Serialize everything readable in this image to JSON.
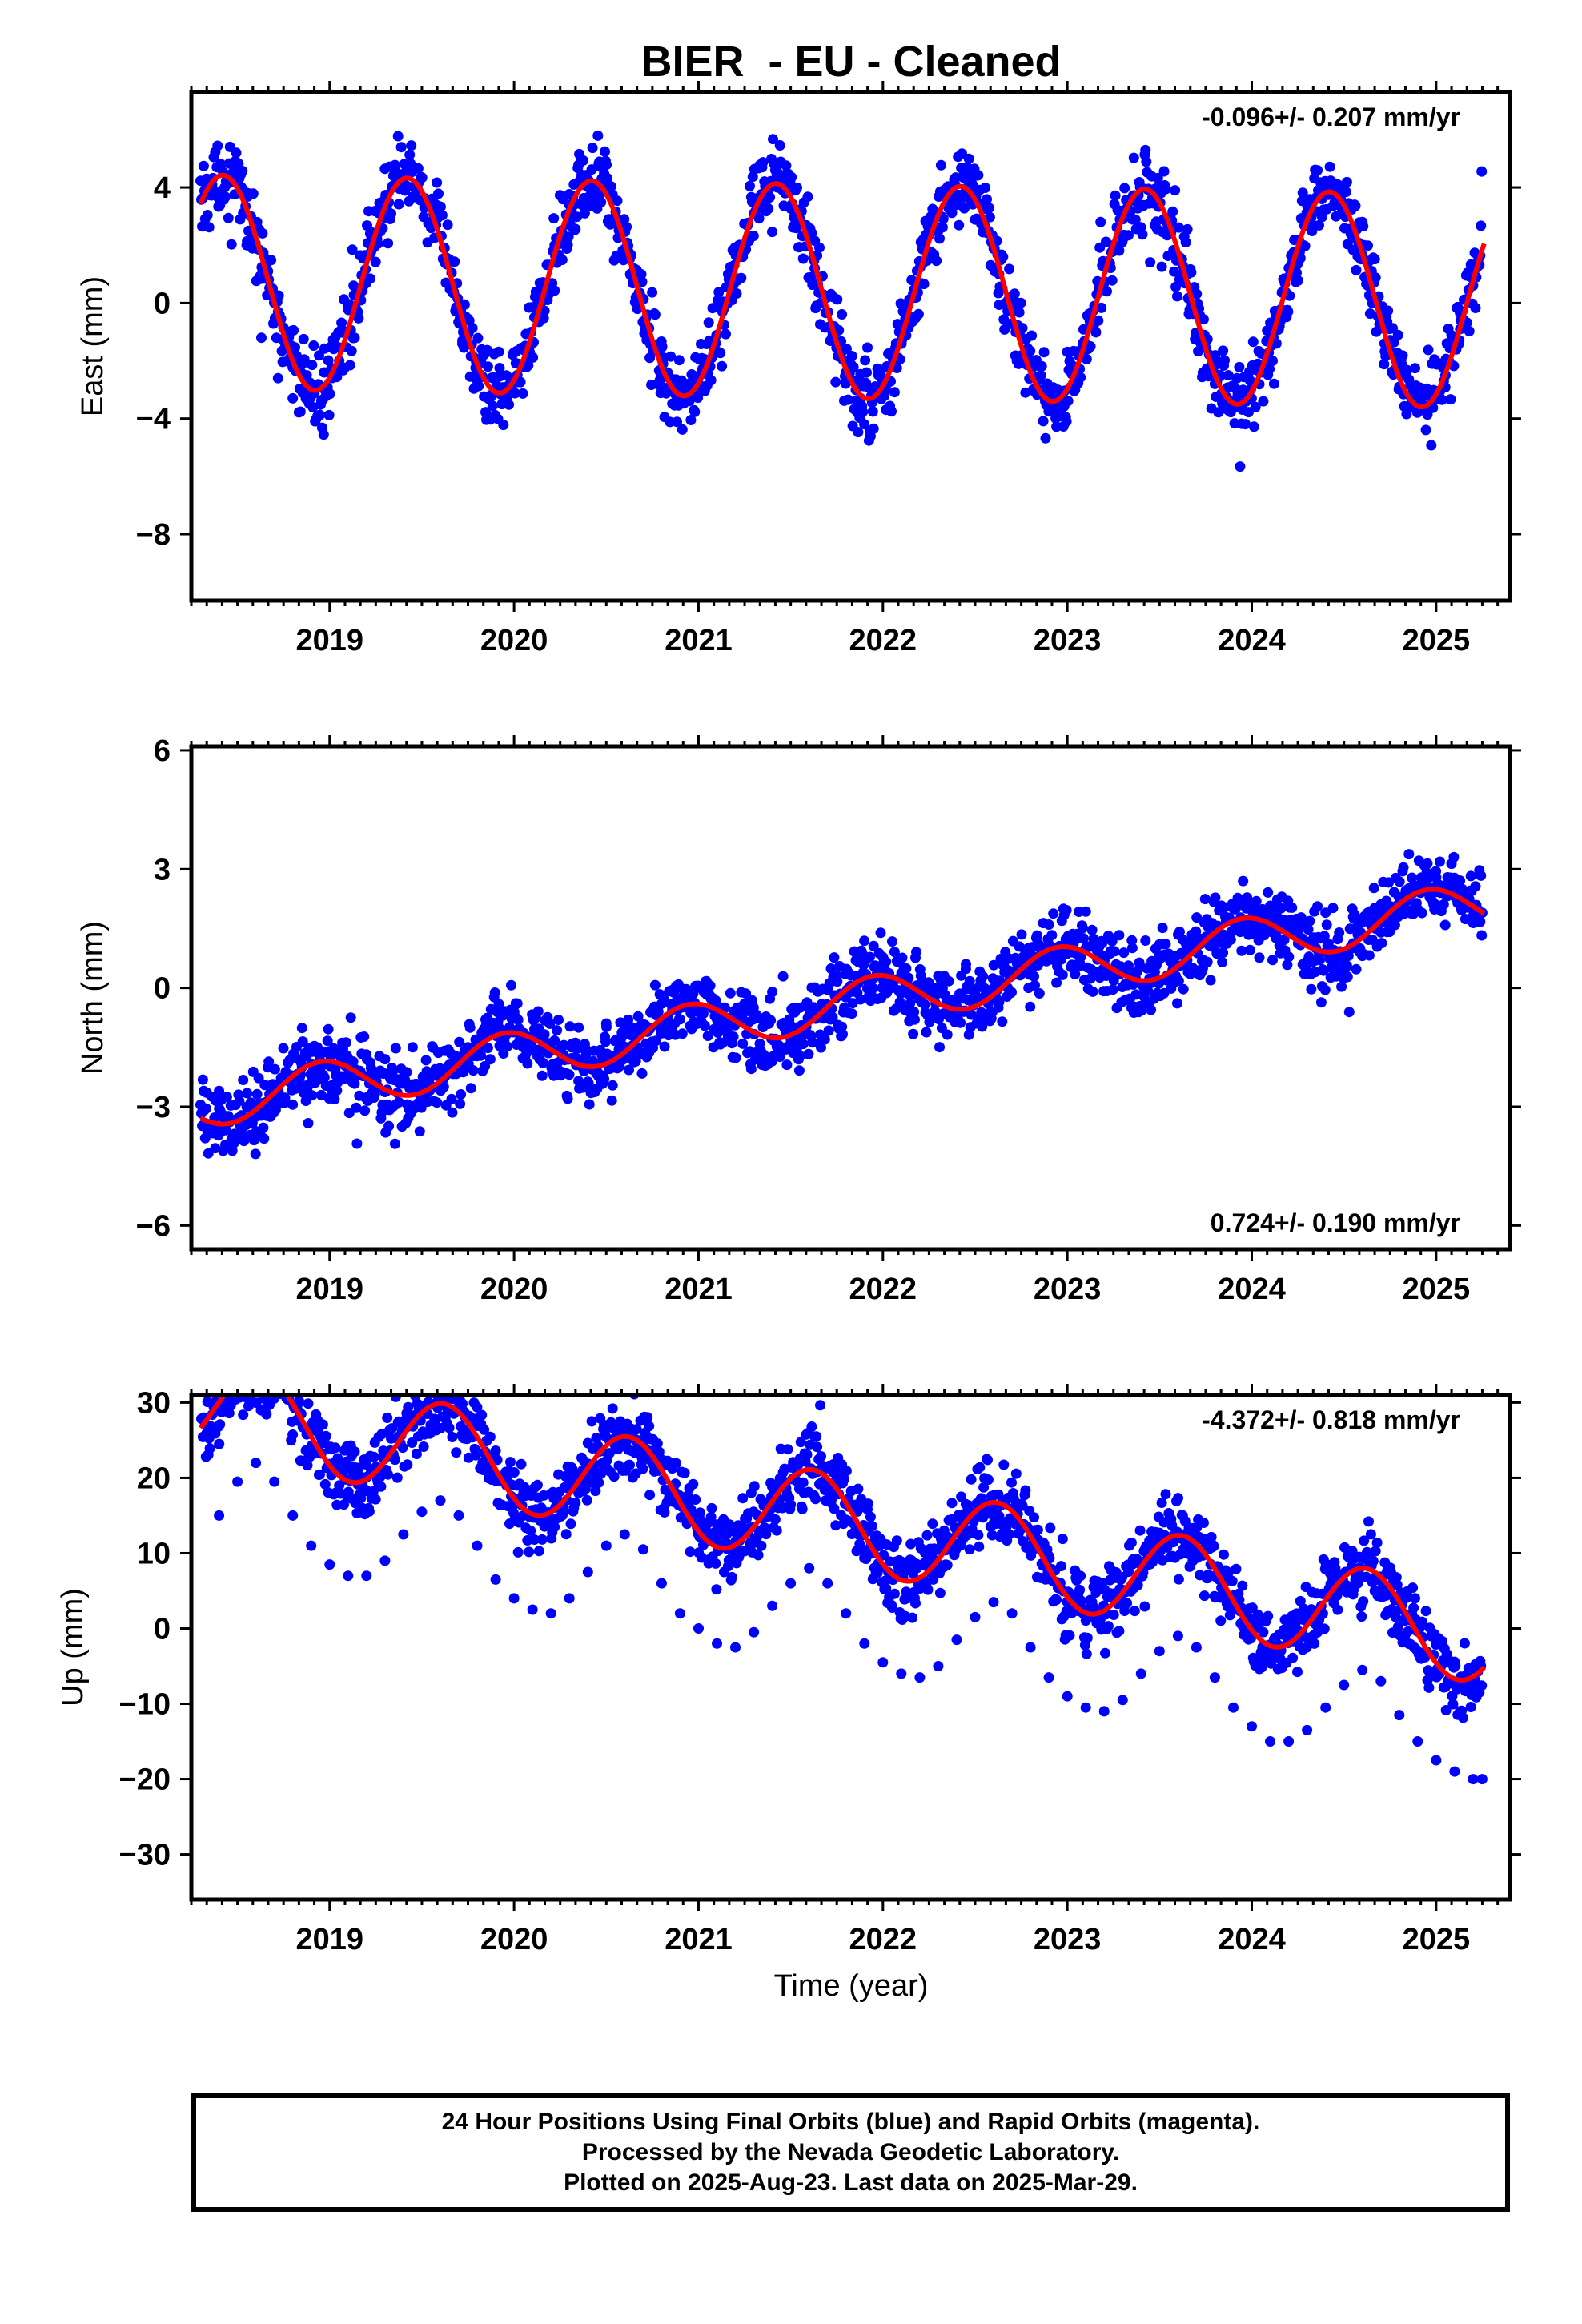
{
  "figure": {
    "title": "BIER  - EU - Cleaned",
    "xlabel": "Time (year)"
  },
  "colors": {
    "points": "#0000ff",
    "fit": "#ff0000",
    "axes": "#000000"
  },
  "footer": {
    "line1": "24 Hour Positions Using Final Orbits (blue) and Rapid Orbits (magenta).",
    "line2": "Processed by the Nevada Geodetic Laboratory.",
    "line3": "Plotted on 2025-Aug-23. Last data on 2025-Mar-29."
  },
  "chart_data": [
    {
      "type": "scatter",
      "panel": "east",
      "title": "BIER  - EU - Cleaned",
      "ylabel": "East (mm)",
      "xlabel": "",
      "xlim": [
        2018.25,
        2025.4
      ],
      "ylim": [
        -10.3,
        7.3
      ],
      "xticks": [
        2019,
        2020,
        2021,
        2022,
        2023,
        2024,
        2025
      ],
      "yticks": [
        -8,
        -4,
        0,
        4
      ],
      "annotation": "-0.096+/- 0.207 mm/yr",
      "annotation_position": "top-right",
      "fit": {
        "trend_mm_per_yr": -0.096,
        "offset": 0.4,
        "amplitude": 3.7,
        "peak_phase_yr": 0.42
      },
      "series": [
        {
          "role": "daily-positions",
          "values": [
            [
              2018.4,
              3.6
            ],
            [
              2018.47,
              4.2
            ],
            [
              2018.55,
              2.0
            ],
            [
              2018.63,
              -1.2
            ],
            [
              2018.72,
              -2.6
            ],
            [
              2018.8,
              -3.3
            ],
            [
              2018.88,
              -3.1
            ],
            [
              2018.97,
              -2.4
            ],
            [
              2019.05,
              -1.0
            ],
            [
              2019.13,
              0.6
            ],
            [
              2019.22,
              2.4
            ],
            [
              2019.3,
              3.6
            ],
            [
              2019.38,
              4.2
            ],
            [
              2019.47,
              3.9
            ],
            [
              2019.55,
              2.6
            ],
            [
              2019.63,
              0.7
            ],
            [
              2019.72,
              -1.3
            ],
            [
              2019.8,
              -2.7
            ],
            [
              2019.88,
              -3.2
            ],
            [
              2019.97,
              -2.9
            ],
            [
              2020.05,
              -1.6
            ],
            [
              2020.13,
              0.2
            ],
            [
              2020.22,
              2.0
            ],
            [
              2020.3,
              3.4
            ],
            [
              2020.38,
              4.1
            ],
            [
              2020.47,
              3.8
            ],
            [
              2020.55,
              2.8
            ],
            [
              2020.63,
              1.0
            ],
            [
              2020.72,
              -1.0
            ],
            [
              2020.8,
              -2.5
            ],
            [
              2020.88,
              -3.2
            ],
            [
              2020.97,
              -3.1
            ],
            [
              2021.05,
              -2.0
            ],
            [
              2021.13,
              -0.3
            ],
            [
              2021.22,
              1.6
            ],
            [
              2021.3,
              3.1
            ],
            [
              2021.38,
              3.9
            ],
            [
              2021.47,
              3.8
            ],
            [
              2021.55,
              2.9
            ],
            [
              2021.63,
              1.2
            ],
            [
              2021.72,
              -0.8
            ],
            [
              2021.8,
              -2.4
            ],
            [
              2021.88,
              -3.3
            ],
            [
              2021.97,
              -3.2
            ],
            [
              2022.05,
              -2.2
            ],
            [
              2022.13,
              -0.5
            ],
            [
              2022.22,
              1.4
            ],
            [
              2022.3,
              3.0
            ],
            [
              2022.38,
              3.8
            ],
            [
              2022.47,
              3.7
            ],
            [
              2022.55,
              2.7
            ],
            [
              2022.63,
              1.0
            ],
            [
              2022.72,
              -1.0
            ],
            [
              2022.8,
              -2.6
            ],
            [
              2022.88,
              -3.4
            ],
            [
              2022.97,
              -3.3
            ],
            [
              2023.05,
              -2.3
            ],
            [
              2023.13,
              -0.6
            ],
            [
              2023.22,
              1.3
            ],
            [
              2023.3,
              2.9
            ],
            [
              2023.38,
              3.7
            ],
            [
              2023.47,
              3.6
            ],
            [
              2023.55,
              2.6
            ],
            [
              2023.63,
              0.8
            ],
            [
              2023.72,
              -1.2
            ],
            [
              2023.8,
              -2.8
            ],
            [
              2023.88,
              -3.5
            ],
            [
              2023.97,
              -3.4
            ],
            [
              2024.05,
              -2.4
            ],
            [
              2024.13,
              -0.7
            ],
            [
              2024.22,
              1.2
            ],
            [
              2024.3,
              2.8
            ],
            [
              2024.38,
              3.6
            ],
            [
              2024.47,
              3.5
            ],
            [
              2024.55,
              2.4
            ],
            [
              2024.63,
              0.6
            ],
            [
              2024.72,
              -1.4
            ],
            [
              2024.8,
              -2.9
            ],
            [
              2024.88,
              -3.6
            ],
            [
              2024.97,
              -3.5
            ],
            [
              2025.05,
              -2.5
            ],
            [
              2025.13,
              -0.9
            ],
            [
              2025.2,
              0.6
            ]
          ]
        }
      ]
    },
    {
      "type": "scatter",
      "panel": "north",
      "ylabel": "North (mm)",
      "xlabel": "",
      "xlim": [
        2018.25,
        2025.4
      ],
      "ylim": [
        -6.6,
        6.1
      ],
      "xticks": [
        2019,
        2020,
        2021,
        2022,
        2023,
        2024,
        2025
      ],
      "yticks": [
        -6,
        -3,
        0,
        3,
        6
      ],
      "annotation": "0.724+/- 0.190 mm/yr",
      "annotation_position": "bottom-right",
      "fit": {
        "trend_mm_per_yr": 0.724,
        "offset": -0.4,
        "amplitude": 0.6,
        "peak_phase_yr": 0.95
      },
      "series": [
        {
          "role": "daily-positions",
          "values": [
            [
              2018.4,
              -2.6
            ],
            [
              2018.55,
              -3.0
            ],
            [
              2018.7,
              -2.9
            ],
            [
              2018.85,
              -2.0
            ],
            [
              2019.0,
              -1.6
            ],
            [
              2019.15,
              -2.2
            ],
            [
              2019.3,
              -1.8
            ],
            [
              2019.45,
              -1.5
            ],
            [
              2019.6,
              -2.2
            ],
            [
              2019.75,
              -1.5
            ],
            [
              2019.9,
              -0.9
            ],
            [
              2020.05,
              -1.5
            ],
            [
              2020.2,
              -1.4
            ],
            [
              2020.35,
              -1.0
            ],
            [
              2020.5,
              -0.9
            ],
            [
              2020.65,
              -1.2
            ],
            [
              2020.8,
              -0.4
            ],
            [
              2020.95,
              -0.1
            ],
            [
              2021.1,
              -0.8
            ],
            [
              2021.25,
              -0.4
            ],
            [
              2021.4,
              -0.1
            ],
            [
              2021.55,
              -0.5
            ],
            [
              2021.7,
              -0.6
            ],
            [
              2021.85,
              0.3
            ],
            [
              2022.0,
              0.6
            ],
            [
              2022.15,
              -0.2
            ],
            [
              2022.3,
              0.3
            ],
            [
              2022.45,
              0.6
            ],
            [
              2022.6,
              0.0
            ],
            [
              2022.75,
              0.5
            ],
            [
              2022.9,
              1.6
            ],
            [
              2023.05,
              1.3
            ],
            [
              2023.2,
              0.8
            ],
            [
              2023.35,
              1.2
            ],
            [
              2023.5,
              1.1
            ],
            [
              2023.65,
              0.7
            ],
            [
              2023.8,
              1.4
            ],
            [
              2023.95,
              2.1
            ],
            [
              2024.1,
              1.8
            ],
            [
              2024.25,
              1.4
            ],
            [
              2024.4,
              1.9
            ],
            [
              2024.55,
              1.8
            ],
            [
              2024.7,
              1.4
            ],
            [
              2024.85,
              2.3
            ],
            [
              2025.0,
              2.8
            ],
            [
              2025.15,
              2.1
            ],
            [
              2025.25,
              1.9
            ]
          ]
        }
      ]
    },
    {
      "type": "scatter",
      "panel": "up",
      "ylabel": "Up (mm)",
      "xlabel": "Time (year)",
      "xlim": [
        2018.25,
        2025.4
      ],
      "ylim": [
        -36,
        31
      ],
      "xticks": [
        2019,
        2020,
        2021,
        2022,
        2023,
        2024,
        2025
      ],
      "yticks": [
        -30,
        -20,
        -10,
        0,
        10,
        20,
        30
      ],
      "annotation": "-4.372+/- 0.818 mm/yr",
      "annotation_position": "top-right",
      "fit": {
        "trend_mm_per_yr": -4.372,
        "offset": 14.0,
        "amplitude": 6.3,
        "peak_phase_yr": 0.62
      },
      "series": [
        {
          "role": "daily-positions",
          "values": [
            [
              2018.4,
              15.0
            ],
            [
              2018.5,
              19.5
            ],
            [
              2018.6,
              22.0
            ],
            [
              2018.7,
              19.5
            ],
            [
              2018.8,
              15.0
            ],
            [
              2018.9,
              11.0
            ],
            [
              2019.0,
              8.5
            ],
            [
              2019.1,
              7.0
            ],
            [
              2019.2,
              7.0
            ],
            [
              2019.3,
              9.0
            ],
            [
              2019.4,
              12.5
            ],
            [
              2019.5,
              15.5
            ],
            [
              2019.6,
              17.0
            ],
            [
              2019.7,
              15.0
            ],
            [
              2019.8,
              11.0
            ],
            [
              2019.9,
              6.5
            ],
            [
              2020.0,
              4.0
            ],
            [
              2020.1,
              2.5
            ],
            [
              2020.2,
              2.0
            ],
            [
              2020.3,
              4.0
            ],
            [
              2020.4,
              7.5
            ],
            [
              2020.5,
              11.0
            ],
            [
              2020.6,
              12.5
            ],
            [
              2020.7,
              10.5
            ],
            [
              2020.8,
              6.0
            ],
            [
              2020.9,
              2.0
            ],
            [
              2021.0,
              0.0
            ],
            [
              2021.1,
              -2.0
            ],
            [
              2021.2,
              -2.5
            ],
            [
              2021.3,
              -0.5
            ],
            [
              2021.4,
              3.0
            ],
            [
              2021.5,
              6.0
            ],
            [
              2021.6,
              8.0
            ],
            [
              2021.7,
              6.0
            ],
            [
              2021.8,
              2.0
            ],
            [
              2021.9,
              -2.0
            ],
            [
              2022.0,
              -4.5
            ],
            [
              2022.1,
              -6.0
            ],
            [
              2022.2,
              -6.5
            ],
            [
              2022.3,
              -5.0
            ],
            [
              2022.4,
              -1.5
            ],
            [
              2022.5,
              1.5
            ],
            [
              2022.6,
              3.5
            ],
            [
              2022.7,
              2.0
            ],
            [
              2022.8,
              -2.5
            ],
            [
              2022.9,
              -6.5
            ],
            [
              2023.0,
              -9.0
            ],
            [
              2023.1,
              -10.5
            ],
            [
              2023.2,
              -11.0
            ],
            [
              2023.3,
              -9.5
            ],
            [
              2023.4,
              -6.0
            ],
            [
              2023.5,
              -3.0
            ],
            [
              2023.6,
              -1.0
            ],
            [
              2023.7,
              -2.5
            ],
            [
              2023.8,
              -6.5
            ],
            [
              2023.9,
              -10.5
            ],
            [
              2024.0,
              -13.0
            ],
            [
              2024.1,
              -15.0
            ],
            [
              2024.2,
              -15.0
            ],
            [
              2024.3,
              -13.5
            ],
            [
              2024.4,
              -10.5
            ],
            [
              2024.5,
              -7.5
            ],
            [
              2024.6,
              -5.5
            ],
            [
              2024.7,
              -7.0
            ],
            [
              2024.8,
              -11.5
            ],
            [
              2024.9,
              -15.0
            ],
            [
              2025.0,
              -17.5
            ],
            [
              2025.1,
              -19.0
            ],
            [
              2025.2,
              -20.0
            ],
            [
              2025.25,
              -20.0
            ]
          ]
        }
      ]
    }
  ]
}
